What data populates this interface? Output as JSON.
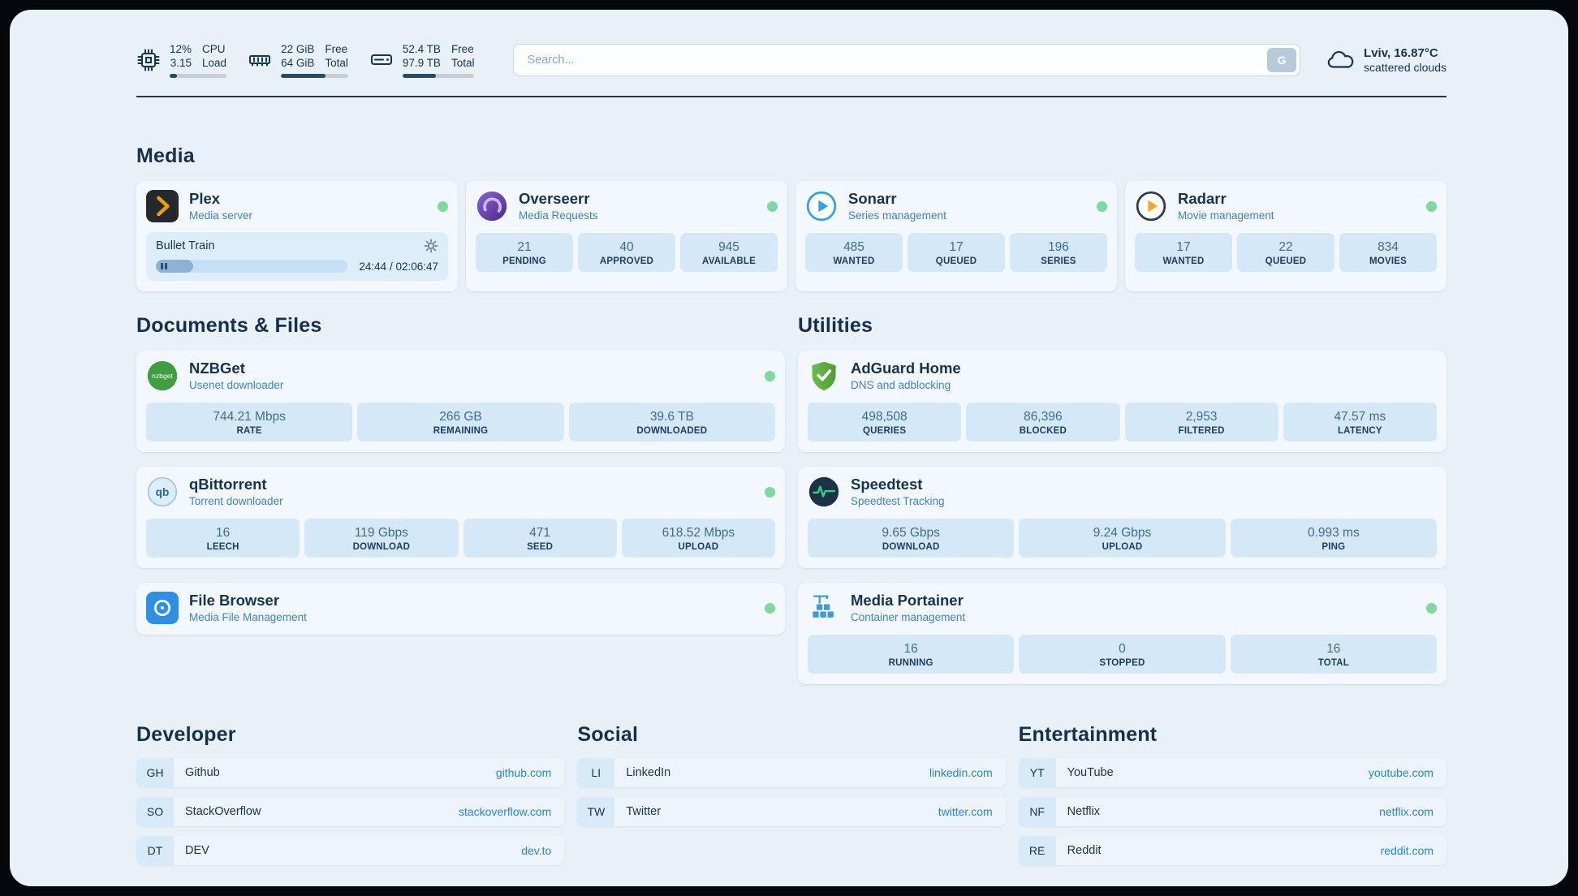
{
  "topbar": {
    "cpu": {
      "icon": "cpu-icon",
      "value_top": "12%",
      "value_bottom": "3.15",
      "label_top": "CPU",
      "label_bottom": "Load",
      "percent_used": 13
    },
    "memory": {
      "icon": "memory-icon",
      "value_top": "22 GiB",
      "value_bottom": "64 GiB",
      "label_top": "Free",
      "label_bottom": "Total",
      "percent_used": 66
    },
    "disk": {
      "icon": "disk-icon",
      "value_top": "52.4 TB",
      "value_bottom": "97.9 TB",
      "label_top": "Free",
      "label_bottom": "Total",
      "percent_used": 46
    },
    "search": {
      "placeholder": "Search...",
      "provider_button": "G"
    },
    "weather": {
      "icon": "cloud-icon",
      "location": "Lviv, 16.87°C",
      "condition": "scattered clouds"
    }
  },
  "sections": {
    "media": {
      "heading": "Media"
    },
    "documents": {
      "heading": "Documents & Files"
    },
    "utilities": {
      "heading": "Utilities"
    }
  },
  "services": {
    "plex": {
      "title": "Plex",
      "subtitle": "Media server",
      "status": "online",
      "icon": "plex-icon",
      "now_playing": {
        "title": "Bullet Train",
        "time_display": "24:44 / 02:06:47",
        "progress_percent": 19.5,
        "state": "paused"
      }
    },
    "overseerr": {
      "title": "Overseerr",
      "subtitle": "Media Requests",
      "status": "online",
      "icon": "overseerr-icon",
      "stats": [
        {
          "value": "21",
          "label": "PENDING"
        },
        {
          "value": "40",
          "label": "APPROVED"
        },
        {
          "value": "945",
          "label": "AVAILABLE"
        }
      ]
    },
    "sonarr": {
      "title": "Sonarr",
      "subtitle": "Series management",
      "status": "online",
      "icon": "sonarr-icon",
      "stats": [
        {
          "value": "485",
          "label": "WANTED"
        },
        {
          "value": "17",
          "label": "QUEUED"
        },
        {
          "value": "196",
          "label": "SERIES"
        }
      ]
    },
    "radarr": {
      "title": "Radarr",
      "subtitle": "Movie management",
      "status": "online",
      "icon": "radarr-icon",
      "stats": [
        {
          "value": "17",
          "label": "WANTED"
        },
        {
          "value": "22",
          "label": "QUEUED"
        },
        {
          "value": "834",
          "label": "MOVIES"
        }
      ]
    },
    "nzbget": {
      "title": "NZBGet",
      "subtitle": "Usenet downloader",
      "status": "online",
      "icon": "nzbget-icon",
      "stats": [
        {
          "value": "744.21 Mbps",
          "label": "RATE"
        },
        {
          "value": "266 GB",
          "label": "REMAINING"
        },
        {
          "value": "39.6 TB",
          "label": "DOWNLOADED"
        }
      ]
    },
    "qbittorrent": {
      "title": "qBittorrent",
      "subtitle": "Torrent downloader",
      "status": "online",
      "icon": "qbittorrent-icon",
      "stats": [
        {
          "value": "16",
          "label": "LEECH"
        },
        {
          "value": "119 Gbps",
          "label": "DOWNLOAD"
        },
        {
          "value": "471",
          "label": "SEED"
        },
        {
          "value": "618.52 Mbps",
          "label": "UPLOAD"
        }
      ]
    },
    "filebrowser": {
      "title": "File Browser",
      "subtitle": "Media File Management",
      "status": "online",
      "icon": "filebrowser-icon"
    },
    "adguard": {
      "title": "AdGuard Home",
      "subtitle": "DNS and adblocking",
      "icon": "adguard-icon",
      "stats": [
        {
          "value": "498,508",
          "label": "QUERIES"
        },
        {
          "value": "86,396",
          "label": "BLOCKED"
        },
        {
          "value": "2,953",
          "label": "FILTERED"
        },
        {
          "value": "47.57 ms",
          "label": "LATENCY"
        }
      ]
    },
    "speedtest": {
      "title": "Speedtest",
      "subtitle": "Speedtest Tracking",
      "icon": "speedtest-icon",
      "stats": [
        {
          "value": "9.65 Gbps",
          "label": "DOWNLOAD"
        },
        {
          "value": "9.24 Gbps",
          "label": "UPLOAD"
        },
        {
          "value": "0.993 ms",
          "label": "PING"
        }
      ]
    },
    "portainer": {
      "title": "Media Portainer",
      "subtitle": "Container management",
      "status": "online",
      "icon": "portainer-icon",
      "stats": [
        {
          "value": "16",
          "label": "RUNNING"
        },
        {
          "value": "0",
          "label": "STOPPED"
        },
        {
          "value": "16",
          "label": "TOTAL"
        }
      ]
    }
  },
  "bookmarks": {
    "developer": {
      "heading": "Developer",
      "items": [
        {
          "abbr": "GH",
          "name": "Github",
          "url": "github.com"
        },
        {
          "abbr": "SO",
          "name": "StackOverflow",
          "url": "stackoverflow.com"
        },
        {
          "abbr": "DT",
          "name": "DEV",
          "url": "dev.to"
        }
      ]
    },
    "social": {
      "heading": "Social",
      "items": [
        {
          "abbr": "LI",
          "name": "LinkedIn",
          "url": "linkedin.com"
        },
        {
          "abbr": "TW",
          "name": "Twitter",
          "url": "twitter.com"
        }
      ]
    },
    "entertainment": {
      "heading": "Entertainment",
      "items": [
        {
          "abbr": "YT",
          "name": "YouTube",
          "url": "youtube.com"
        },
        {
          "abbr": "NF",
          "name": "Netflix",
          "url": "netflix.com"
        },
        {
          "abbr": "RE",
          "name": "Reddit",
          "url": "reddit.com"
        }
      ]
    }
  },
  "colors": {
    "status_online": "#7fd8a0",
    "accent_link": "#2d82d4",
    "stat_block_bg": "#d5e8f7",
    "page_bg": "#e8f1f8"
  }
}
